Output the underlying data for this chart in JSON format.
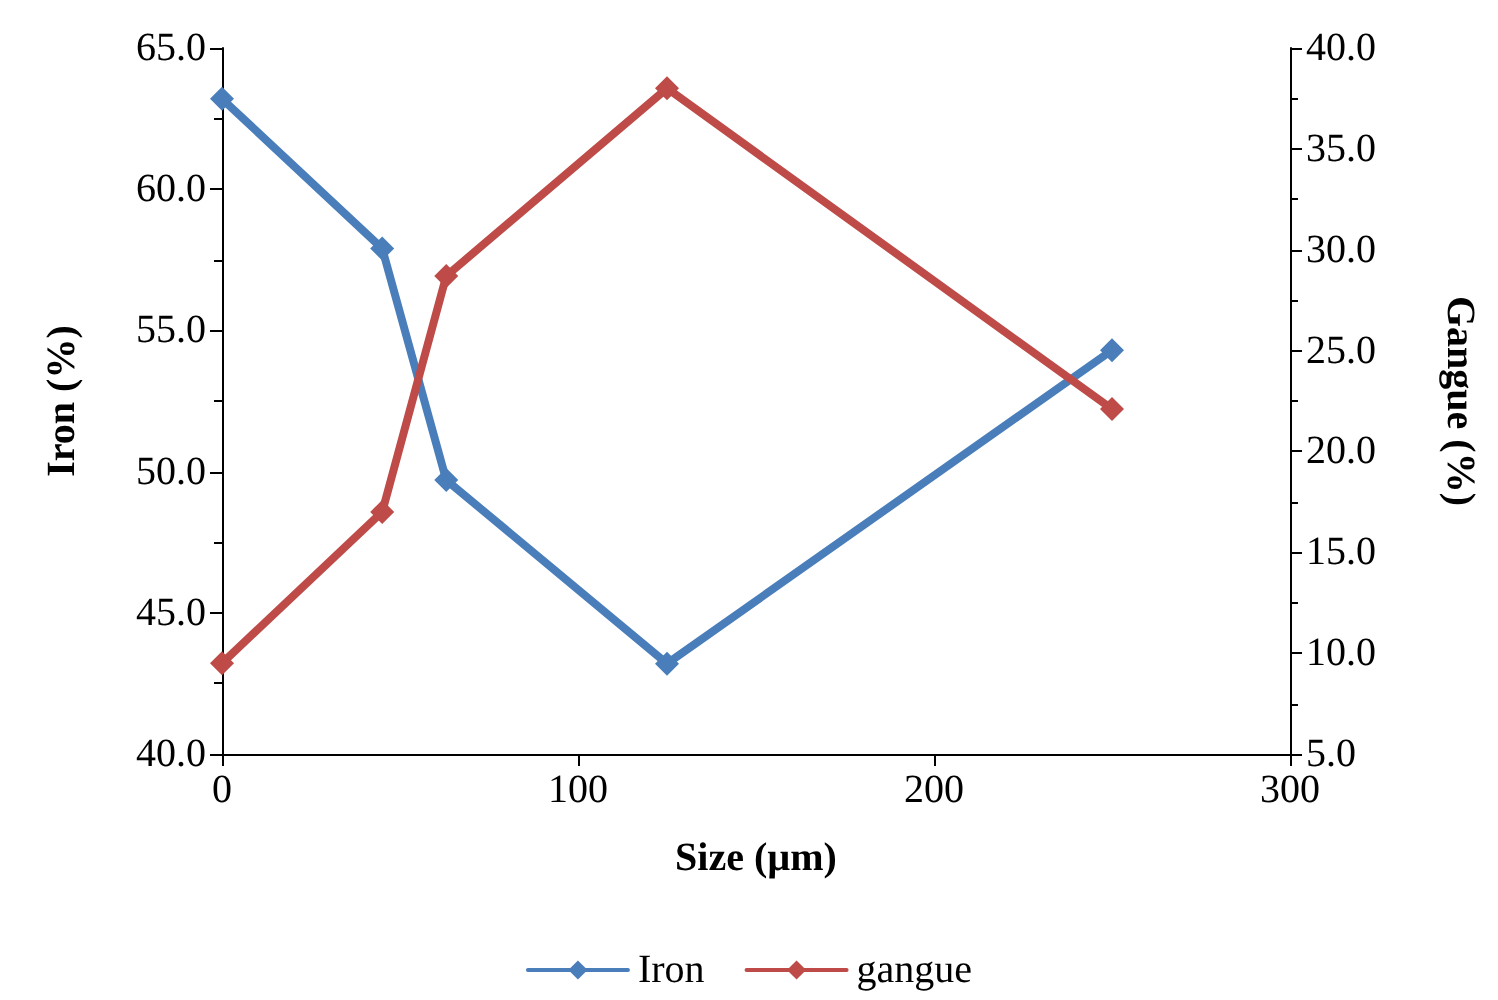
{
  "chart_data": {
    "type": "line",
    "xlabel": "Size (µm)",
    "ylabel": "Iron (%)",
    "y2label": "Gangue (%)",
    "x": [
      0,
      45,
      63,
      125,
      250
    ],
    "series": [
      {
        "name": "Iron",
        "color": "#4a7ebb",
        "values": [
          63.2,
          57.9,
          49.7,
          43.2,
          54.3
        ]
      },
      {
        "name": "gangue",
        "color": "#be4b48",
        "axis": "y2",
        "values": [
          9.5,
          17.0,
          28.7,
          38.0,
          22.1
        ]
      }
    ],
    "xlim": [
      0,
      300
    ],
    "xticks": [
      0,
      100,
      200,
      300
    ],
    "ylim": [
      40,
      65
    ],
    "yticks": [
      {
        "value": 40,
        "label": "40.0"
      },
      {
        "value": 45,
        "label": "45.0"
      },
      {
        "value": 50,
        "label": "50.0"
      },
      {
        "value": 55,
        "label": "55.0"
      },
      {
        "value": 60,
        "label": "60.0"
      },
      {
        "value": 65,
        "label": "65.0"
      }
    ],
    "y2lim": [
      5,
      40
    ],
    "y2ticks": [
      {
        "value": 5,
        "label": "5.0"
      },
      {
        "value": 10,
        "label": "10.0"
      },
      {
        "value": 15,
        "label": "15.0"
      },
      {
        "value": 20,
        "label": "20.0"
      },
      {
        "value": 25,
        "label": "25.0"
      },
      {
        "value": 30,
        "label": "30.0"
      },
      {
        "value": 35,
        "label": "35.0"
      },
      {
        "value": 40,
        "label": "40.0"
      }
    ],
    "grid": false,
    "legend": "bottom",
    "marker": "diamond",
    "line_style": "solid"
  }
}
